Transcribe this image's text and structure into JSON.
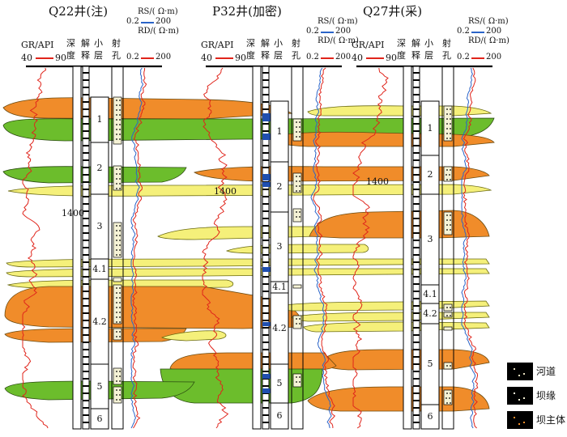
{
  "wells": [
    {
      "name": "Q22井(注)",
      "gr_label": "GR/API",
      "gr_min": "40",
      "gr_max": "90",
      "depth_label": [
        "深",
        "度"
      ],
      "interp_label": [
        "解",
        "释"
      ],
      "layer_label": [
        "小",
        "层"
      ],
      "perf_label": [
        "射",
        "孔"
      ],
      "rs_label": "RS/( Ω·m)",
      "rs_min": "0.2",
      "rs_max": "200",
      "rd_label": "RD/( Ω·m)",
      "rd_min": "0.2",
      "rd_max": "200",
      "depth_mark": "1400",
      "layers": [
        "1",
        "2",
        "3",
        "4.1",
        "4.2",
        "5",
        "6"
      ]
    },
    {
      "name": "P32井(加密)",
      "gr_label": "GR/API",
      "gr_min": "40",
      "gr_max": "90",
      "depth_label": [
        "深",
        "度"
      ],
      "interp_label": [
        "解",
        "释"
      ],
      "layer_label": [
        "小",
        "层"
      ],
      "perf_label": [
        "射",
        "孔"
      ],
      "rs_label": "RS/( Ω·m)",
      "rs_min": "0.2",
      "rs_max": "200",
      "rd_label": "RD/( Ω·m)",
      "rd_min": "0.2",
      "rd_max": "200",
      "depth_mark": "1400",
      "layers": [
        "1",
        "2",
        "3",
        "4.1",
        "4.2",
        "5",
        "6"
      ]
    },
    {
      "name": "Q27井(采)",
      "gr_label": "GR/API",
      "gr_min": "40",
      "gr_max": "90",
      "depth_label": [
        "深",
        "度"
      ],
      "interp_label": [
        "解",
        "释"
      ],
      "layer_label": [
        "小",
        "层"
      ],
      "perf_label": [
        "射",
        "孔"
      ],
      "rs_label": "RS/( Ω·m)",
      "rs_min": "0.2",
      "rs_max": "200",
      "rd_label": "RD/( Ω·m)",
      "rd_min": "0.2",
      "rd_max": "200",
      "depth_mark": "1400",
      "layers": [
        "1",
        "2",
        "3",
        "4.1",
        "4.2",
        "5",
        "6"
      ]
    }
  ],
  "legend": [
    {
      "label": "河道",
      "color": "#000000"
    },
    {
      "label": "坝缘",
      "color": "#000000"
    },
    {
      "label": "坝主体",
      "color": "#000000"
    }
  ],
  "colors": {
    "channel_green": "#6cbd2c",
    "bar_edge_yellow": "#f5f07a",
    "bar_main_orange": "#f08c2a",
    "gr_curve": "#e0241b",
    "rs_curve": "#2b64c8",
    "rd_curve": "#e0241b"
  }
}
